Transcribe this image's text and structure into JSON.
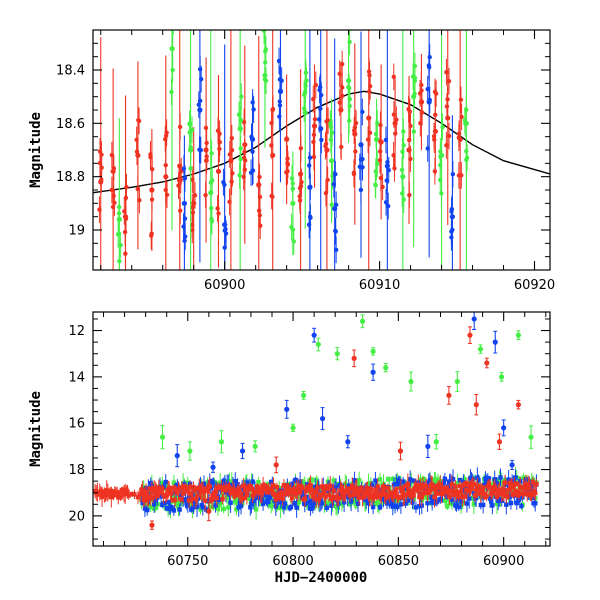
{
  "chart_data": [
    {
      "type": "scatter",
      "panel": "top",
      "title": "",
      "xlabel": "",
      "ylabel": "Magnitude",
      "xlim": [
        60891.5,
        60921
      ],
      "ylim": [
        19.15,
        18.25
      ],
      "y_inverted": true,
      "x_ticks": [
        60900,
        60910,
        60920
      ],
      "y_ticks": [
        18.4,
        18.6,
        18.8,
        19
      ],
      "y_tick_labels": [
        "18.4",
        "18.6",
        "18.8",
        "19"
      ],
      "grid": false,
      "legend": "none",
      "colors": {
        "red": "#ee3322",
        "green": "#44ee44",
        "blue": "#1144ee",
        "model": "#000000"
      },
      "model_curve": {
        "name": "",
        "x": [
          60891.5,
          60894,
          60896,
          60898,
          60900,
          60902,
          60904,
          60906,
          60908,
          60909,
          60910,
          60912,
          60914,
          60916,
          60918,
          60921
        ],
        "y": [
          18.86,
          18.84,
          18.82,
          18.79,
          18.75,
          18.69,
          18.61,
          18.54,
          18.49,
          18.48,
          18.49,
          18.53,
          18.6,
          18.68,
          18.74,
          18.79
        ]
      },
      "series": [
        {
          "name": "",
          "color": "red",
          "x": [
            60892.0,
            60892.8,
            60893.6,
            60894.4,
            60895.3,
            60896.2,
            60897.1,
            60898.0,
            60898.8,
            60899.6,
            60900.4,
            60901.3,
            60902.2,
            60903.1,
            60904.0,
            60904.9,
            60905.8,
            60906.6,
            60907.5,
            60908.4,
            60909.3,
            60910.1,
            60911.0,
            60911.9,
            60912.7,
            60913.6,
            60914.4,
            60915.2
          ],
          "y": [
            18.82,
            18.78,
            18.95,
            18.72,
            18.85,
            18.8,
            18.76,
            18.9,
            18.7,
            18.78,
            18.74,
            18.68,
            18.83,
            18.72,
            18.66,
            18.79,
            18.61,
            18.7,
            18.55,
            18.64,
            18.58,
            18.67,
            18.6,
            18.7,
            18.52,
            18.63,
            18.58,
            18.66
          ]
        },
        {
          "name": "",
          "color": "green",
          "x": [
            60893.2,
            60896.6,
            60897.8,
            60899.1,
            60901.0,
            60902.6,
            60904.4,
            60905.2,
            60906.9,
            60908.0,
            60909.8,
            60911.5,
            60912.2,
            60914.0,
            60915.6
          ],
          "y": [
            18.96,
            18.32,
            18.7,
            18.86,
            18.62,
            18.42,
            18.9,
            18.56,
            18.74,
            18.44,
            18.66,
            18.8,
            18.5,
            18.72,
            18.6
          ]
        },
        {
          "name": "",
          "color": "blue",
          "x": [
            60897.4,
            60898.4,
            60900.0,
            60901.8,
            60903.6,
            60905.5,
            60906.2,
            60907.1,
            60908.8,
            60910.5,
            60913.2,
            60914.7
          ],
          "y": [
            18.9,
            18.55,
            18.98,
            18.66,
            18.48,
            18.84,
            18.62,
            18.92,
            18.68,
            18.76,
            18.52,
            18.95
          ]
        }
      ]
    },
    {
      "type": "scatter",
      "panel": "bottom",
      "title": "",
      "xlabel": "HJD−2400000",
      "ylabel": "Magnitude",
      "xlim": [
        60705,
        60922
      ],
      "ylim": [
        21.3,
        11.2
      ],
      "y_inverted": true,
      "x_ticks": [
        60750,
        60800,
        60850,
        60900
      ],
      "y_ticks": [
        12,
        14,
        16,
        18,
        20
      ],
      "y_tick_labels": [
        "12",
        "14",
        "16",
        "18",
        "20"
      ],
      "grid": false,
      "legend": "none",
      "colors": {
        "red": "#ee3322",
        "green": "#44ee44",
        "blue": "#1144ee"
      },
      "band_model": {
        "x": [
          60705,
          60920
        ],
        "y": [
          19.0,
          18.75
        ]
      },
      "outliers": {
        "green": {
          "x": [
            60738,
            60751,
            60766,
            60782,
            60800,
            60805,
            60812,
            60821,
            60833,
            60838,
            60844,
            60856,
            60868,
            60878,
            60889,
            60899,
            60907,
            60913
          ],
          "y": [
            16.6,
            17.2,
            16.8,
            17.0,
            16.2,
            14.8,
            12.6,
            13.0,
            11.6,
            12.9,
            13.6,
            14.2,
            16.8,
            14.2,
            12.8,
            14.0,
            12.2,
            16.6
          ]
        },
        "blue": {
          "x": [
            60745,
            60762,
            60776,
            60797,
            60810,
            60814,
            60826,
            60838,
            60864,
            60886,
            60896,
            60900,
            60904
          ],
          "y": [
            17.4,
            17.9,
            17.2,
            15.4,
            12.2,
            15.8,
            16.8,
            13.8,
            17.0,
            11.5,
            12.5,
            16.2,
            17.8
          ]
        },
        "red": {
          "x": [
            60733,
            60760,
            60792,
            60829,
            60851,
            60874,
            60884,
            60887,
            60892,
            60898,
            60907
          ],
          "y": [
            20.4,
            19.8,
            17.8,
            13.2,
            17.2,
            14.8,
            12.2,
            15.2,
            13.4,
            16.8,
            15.2
          ]
        }
      }
    }
  ]
}
